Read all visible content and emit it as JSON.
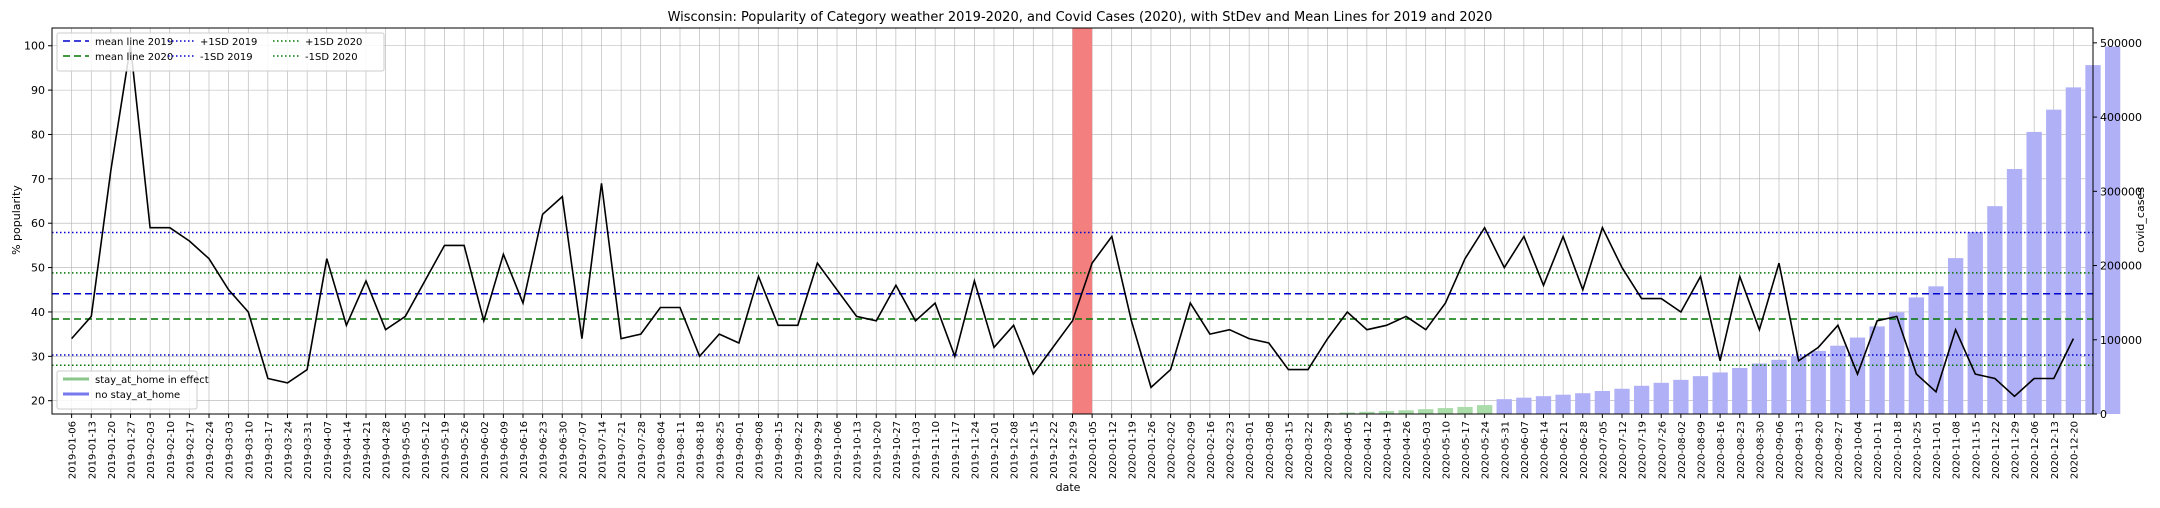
{
  "chart_data": {
    "type": "line",
    "title": "Wisconsin: Popularity of Category weather 2019-2020, and Covid Cases (2020), with StDev and Mean Lines for 2019 and 2020",
    "xlabel": "date",
    "ylabel": "% popularity",
    "y2label": "covid_cases",
    "ylim": [
      17,
      104
    ],
    "y2lim": [
      0,
      520000
    ],
    "yticks": [
      "20",
      "30",
      "40",
      "50",
      "60",
      "70",
      "80",
      "90",
      "100"
    ],
    "y2ticks": [
      "0",
      "100000",
      "200000",
      "300000",
      "400000",
      "500000"
    ],
    "grid": true,
    "legend_lines_placement": "top-left",
    "legend_patches_placement": "bottom-left",
    "x": [
      "2019-01-06",
      "2019-01-13",
      "2019-01-20",
      "2019-01-27",
      "2019-02-03",
      "2019-02-10",
      "2019-02-17",
      "2019-02-24",
      "2019-03-03",
      "2019-03-10",
      "2019-03-17",
      "2019-03-24",
      "2019-03-31",
      "2019-04-07",
      "2019-04-14",
      "2019-04-21",
      "2019-04-28",
      "2019-05-05",
      "2019-05-12",
      "2019-05-19",
      "2019-05-26",
      "2019-06-02",
      "2019-06-09",
      "2019-06-16",
      "2019-06-23",
      "2019-06-30",
      "2019-07-07",
      "2019-07-14",
      "2019-07-21",
      "2019-07-28",
      "2019-08-04",
      "2019-08-11",
      "2019-08-18",
      "2019-08-25",
      "2019-09-01",
      "2019-09-08",
      "2019-09-15",
      "2019-09-22",
      "2019-09-29",
      "2019-10-06",
      "2019-10-13",
      "2019-10-20",
      "2019-10-27",
      "2019-11-03",
      "2019-11-10",
      "2019-11-17",
      "2019-11-24",
      "2019-12-01",
      "2019-12-08",
      "2019-12-15",
      "2019-12-22",
      "2019-12-29",
      "2020-01-05",
      "2020-01-12",
      "2020-01-19",
      "2020-01-26",
      "2020-02-02",
      "2020-02-09",
      "2020-02-16",
      "2020-02-23",
      "2020-03-01",
      "2020-03-08",
      "2020-03-15",
      "2020-03-22",
      "2020-03-29",
      "2020-04-05",
      "2020-04-12",
      "2020-04-19",
      "2020-04-26",
      "2020-05-03",
      "2020-05-10",
      "2020-05-17",
      "2020-05-24",
      "2020-05-31",
      "2020-06-07",
      "2020-06-14",
      "2020-06-21",
      "2020-06-28",
      "2020-07-05",
      "2020-07-12",
      "2020-07-19",
      "2020-07-26",
      "2020-08-02",
      "2020-08-09",
      "2020-08-16",
      "2020-08-23",
      "2020-08-30",
      "2020-09-06",
      "2020-09-13",
      "2020-09-20",
      "2020-09-27",
      "2020-10-04",
      "2020-10-11",
      "2020-10-18",
      "2020-10-25",
      "2020-11-01",
      "2020-11-08",
      "2020-11-15",
      "2020-11-22",
      "2020-11-29",
      "2020-12-06",
      "2020-12-13",
      "2020-12-20"
    ],
    "xticks": [
      "2019-01-06",
      "2019-01-13",
      "2019-01-20",
      "2019-01-27",
      "2019-02-03",
      "2019-02-10",
      "2019-02-17",
      "2019-02-24",
      "2019-03-03",
      "2019-03-10",
      "2019-03-17",
      "2019-03-24",
      "2019-03-31",
      "2019-04-07",
      "2019-04-14",
      "2019-04-21",
      "2019-04-28",
      "2019-05-05",
      "2019-05-12",
      "2019-05-19",
      "2019-05-26",
      "2019-06-02",
      "2019-06-09",
      "2019-06-16",
      "2019-06-23",
      "2019-06-30",
      "2019-07-07",
      "2019-07-14",
      "2019-07-21",
      "2019-07-28",
      "2019-08-04",
      "2019-08-11",
      "2019-08-18",
      "2019-08-25",
      "2019-09-01",
      "2019-09-08",
      "2019-09-15",
      "2019-09-22",
      "2019-09-29",
      "2019-10-06",
      "2019-10-13",
      "2019-10-20",
      "2019-10-27",
      "2019-11-03",
      "2019-11-10",
      "2019-11-17",
      "2019-11-24",
      "2019-12-01",
      "2019-12-08",
      "2019-12-15",
      "2019-12-22",
      "2019-12-29",
      "2020-01-05",
      "2020-01-12",
      "2020-01-19",
      "2020-01-26",
      "2020-02-02",
      "2020-02-09",
      "2020-02-16",
      "2020-02-23",
      "2020-03-01",
      "2020-03-08",
      "2020-03-15",
      "2020-03-22",
      "2020-03-29",
      "2020-04-05",
      "2020-04-12",
      "2020-04-19",
      "2020-04-26",
      "2020-05-03",
      "2020-05-10",
      "2020-05-17",
      "2020-05-24",
      "2020-05-31",
      "2020-06-07",
      "2020-06-14",
      "2020-06-21",
      "2020-06-28",
      "2020-07-05",
      "2020-07-12",
      "2020-07-19",
      "2020-07-26",
      "2020-08-02",
      "2020-08-09",
      "2020-08-16",
      "2020-08-23",
      "2020-08-30",
      "2020-09-06",
      "2020-09-13",
      "2020-09-20",
      "2020-09-27",
      "2020-10-04",
      "2020-10-11",
      "2020-10-18",
      "2020-10-25",
      "2020-11-01",
      "2020-11-08",
      "2020-11-15",
      "2020-11-22",
      "2020-11-29",
      "2020-12-06",
      "2020-12-13",
      "2020-12-20"
    ],
    "popularity": [
      34,
      39,
      72,
      100,
      59,
      59,
      56,
      52,
      45,
      40,
      25,
      24,
      27,
      52,
      37,
      47,
      36,
      39,
      47,
      55,
      55,
      38,
      53,
      42,
      62,
      66,
      34,
      69,
      34,
      35,
      41,
      41,
      30,
      35,
      33,
      48,
      37,
      37,
      51,
      45,
      39,
      38,
      46,
      38,
      42,
      30,
      47,
      32,
      37,
      26,
      32,
      38,
      51,
      57,
      38,
      23,
      27,
      42,
      35,
      36,
      34,
      33,
      27,
      27,
      34,
      40,
      36,
      37,
      39,
      36,
      42,
      52,
      59,
      50,
      57,
      46,
      57,
      45,
      59,
      50,
      43,
      43,
      40,
      48,
      29,
      48,
      36,
      51,
      29,
      32,
      37,
      26,
      38,
      39,
      26,
      22,
      36,
      26,
      25,
      21,
      25,
      25,
      34
    ],
    "stay_at_home_cases": {
      "x_start": "2020-03-29",
      "values": [
        1000,
        2000,
        3000,
        4000,
        5000,
        6500,
        8000,
        9500,
        12000,
        15000,
        18000
      ]
    },
    "no_stay_at_home_cases": {
      "x_start": "2020-05-31",
      "values": [
        20000,
        22000,
        24000,
        26000,
        28000,
        31000,
        34000,
        38000,
        42000,
        46000,
        51000,
        56000,
        62000,
        68000,
        73000,
        78000,
        85000,
        92000,
        103000,
        118000,
        137000,
        157000,
        172000,
        210000,
        245000,
        280000,
        330000,
        380000,
        410000,
        440000,
        470000,
        495000
      ]
    },
    "reference_lines": [
      {
        "name": "mean line 2019",
        "value": 44.1,
        "color": "#0000cc",
        "style": "dashed"
      },
      {
        "name": "mean line 2020",
        "value": 38.4,
        "color": "#007700",
        "style": "dashed"
      },
      {
        "name": "+1SD 2019",
        "value": 57.9,
        "color": "#0000cc",
        "style": "dotted"
      },
      {
        "name": "-1SD 2019",
        "value": 30.3,
        "color": "#0000cc",
        "style": "dotted"
      },
      {
        "name": "+1SD 2020",
        "value": 48.8,
        "color": "#007700",
        "style": "dotted"
      },
      {
        "name": "-1SD 2020",
        "value": 28.0,
        "color": "#007700",
        "style": "dotted"
      }
    ],
    "highlight_span": {
      "from": "2019-12-29",
      "to": "2020-01-05",
      "color": "#f47f7f"
    },
    "legend_lines": [
      {
        "label": "mean line 2019",
        "color": "#0000cc",
        "style": "dashed"
      },
      {
        "label": "mean line 2020",
        "color": "#007700",
        "style": "dashed"
      },
      {
        "label": "+1SD 2019",
        "color": "#0000cc",
        "style": "dotted"
      },
      {
        "label": "-1SD 2019",
        "color": "#0000cc",
        "style": "dotted"
      },
      {
        "label": "+1SD 2020",
        "color": "#007700",
        "style": "dotted"
      },
      {
        "label": "-1SD 2020",
        "color": "#007700",
        "style": "dotted"
      }
    ],
    "legend_patches": [
      {
        "label": "stay_at_home in effect",
        "color": "#8bc78b"
      },
      {
        "label": "no stay_at_home",
        "color": "#7777ee"
      }
    ],
    "colors": {
      "popularity_line": "#000000",
      "stay_at_home_bar": "#a9dca9",
      "no_stay_at_home_bar": "#b0b0f7",
      "grid": "#b0b0b0"
    }
  }
}
